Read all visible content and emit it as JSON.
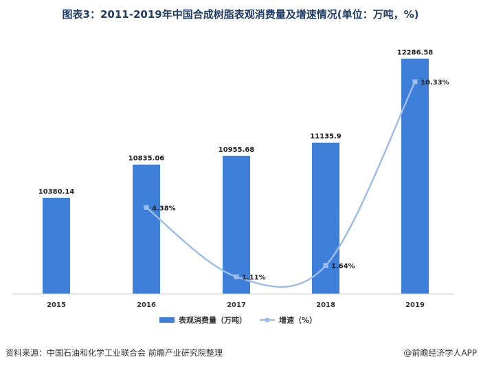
{
  "title": "图表3：2011-2019年中国合成树脂表观消费量及增速情况(单位：万吨，%)",
  "chart_data": {
    "type": "bar",
    "categories": [
      "2015",
      "2016",
      "2017",
      "2018",
      "2019"
    ],
    "series": [
      {
        "name": "表观消费量（万吨）",
        "kind": "bar",
        "color": "#3d7fd9",
        "values": [
          10380.14,
          10835.06,
          10955.68,
          11135.9,
          12286.58
        ],
        "labels": [
          "10380.14",
          "10835.06",
          "10955.68",
          "11135.9",
          "12286.58"
        ]
      },
      {
        "name": "增速（%）",
        "kind": "line",
        "color": "#9dbde9",
        "x": [
          "2016",
          "2017",
          "2018",
          "2019"
        ],
        "values": [
          4.38,
          1.11,
          1.64,
          10.33
        ],
        "labels": [
          "4.38%",
          "1.11%",
          "1.64%",
          "10.33%"
        ]
      }
    ],
    "legend_position": "bottom",
    "grid": false
  },
  "footer": {
    "source": "资料来源：中国石油和化学工业联合会 前瞻产业研究院整理",
    "brand": "@前瞻经济学人APP"
  }
}
